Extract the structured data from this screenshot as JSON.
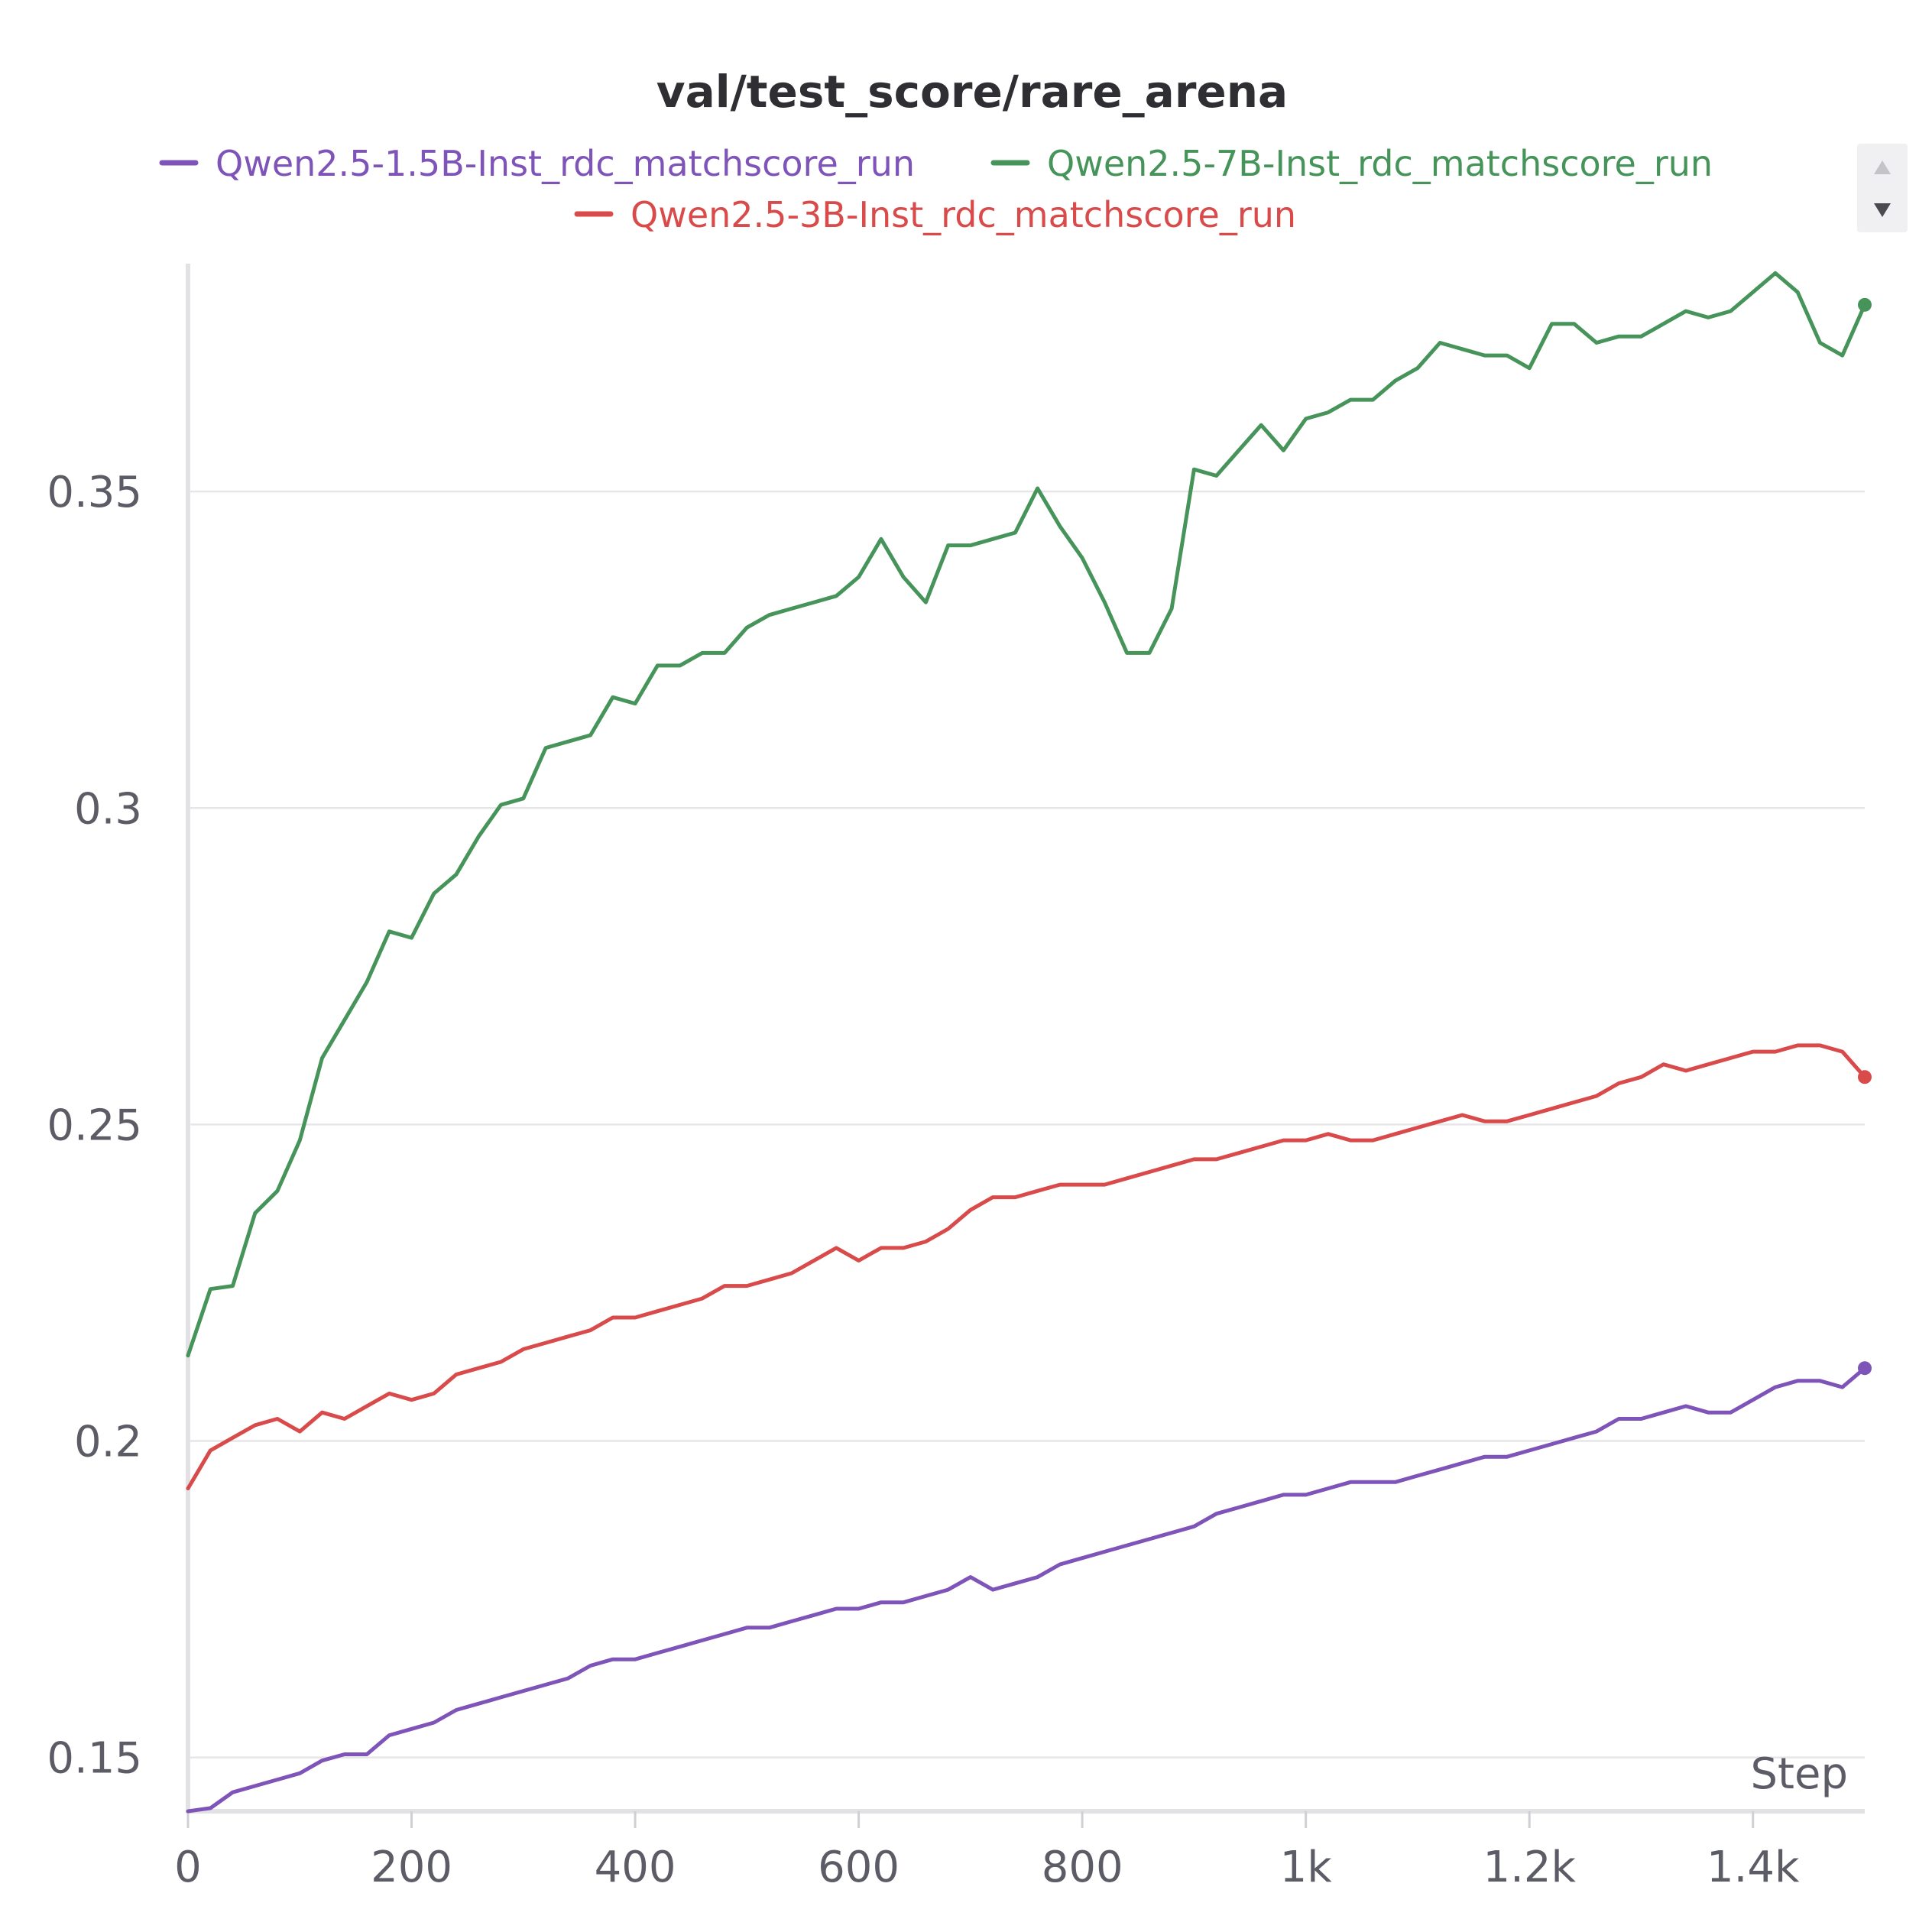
{
  "chart_data": {
    "type": "line",
    "title": "val/test_score/rare_arena",
    "xlabel": "Step",
    "ylabel": "",
    "xlim": [
      0,
      1500
    ],
    "ylim": [
      0.1415,
      0.386
    ],
    "grid": true,
    "legend_position": "top-center",
    "x_ticks": [
      {
        "value": 0,
        "label": "0"
      },
      {
        "value": 200,
        "label": "200"
      },
      {
        "value": 400,
        "label": "400"
      },
      {
        "value": 600,
        "label": "600"
      },
      {
        "value": 800,
        "label": "800"
      },
      {
        "value": 1000,
        "label": "1k"
      },
      {
        "value": 1200,
        "label": "1.2k"
      },
      {
        "value": 1400,
        "label": "1.4k"
      }
    ],
    "y_ticks": [
      {
        "value": 0.15,
        "label": "0.15"
      },
      {
        "value": 0.2,
        "label": "0.2"
      },
      {
        "value": 0.25,
        "label": "0.25"
      },
      {
        "value": 0.3,
        "label": "0.3"
      },
      {
        "value": 0.35,
        "label": "0.35"
      }
    ],
    "series": [
      {
        "name": "Qwen2.5-1.5B-Inst_rdc_matchscore_run",
        "color": "#7e54b8",
        "points": [
          [
            0,
            0.1415
          ],
          [
            20,
            0.142
          ],
          [
            40,
            0.1445
          ],
          [
            60,
            0.1455
          ],
          [
            80,
            0.1465
          ],
          [
            100,
            0.1475
          ],
          [
            120,
            0.1495
          ],
          [
            140,
            0.1505
          ],
          [
            160,
            0.1505
          ],
          [
            180,
            0.1535
          ],
          [
            200,
            0.1545
          ],
          [
            220,
            0.1555
          ],
          [
            240,
            0.1575
          ],
          [
            260,
            0.1585
          ],
          [
            280,
            0.1595
          ],
          [
            300,
            0.1605
          ],
          [
            320,
            0.1615
          ],
          [
            340,
            0.1625
          ],
          [
            360,
            0.1645
          ],
          [
            380,
            0.1655
          ],
          [
            400,
            0.1655
          ],
          [
            420,
            0.1665
          ],
          [
            440,
            0.1675
          ],
          [
            460,
            0.1685
          ],
          [
            480,
            0.1695
          ],
          [
            500,
            0.1705
          ],
          [
            520,
            0.1705
          ],
          [
            540,
            0.1715
          ],
          [
            560,
            0.1725
          ],
          [
            580,
            0.1735
          ],
          [
            600,
            0.1735
          ],
          [
            620,
            0.1745
          ],
          [
            640,
            0.1745
          ],
          [
            660,
            0.1755
          ],
          [
            680,
            0.1765
          ],
          [
            700,
            0.1785
          ],
          [
            720,
            0.1765
          ],
          [
            740,
            0.1775
          ],
          [
            760,
            0.1785
          ],
          [
            780,
            0.1805
          ],
          [
            800,
            0.1815
          ],
          [
            820,
            0.1825
          ],
          [
            840,
            0.1835
          ],
          [
            860,
            0.1845
          ],
          [
            880,
            0.1855
          ],
          [
            900,
            0.1865
          ],
          [
            920,
            0.1885
          ],
          [
            940,
            0.1895
          ],
          [
            960,
            0.1905
          ],
          [
            980,
            0.1915
          ],
          [
            1000,
            0.1915
          ],
          [
            1020,
            0.1925
          ],
          [
            1040,
            0.1935
          ],
          [
            1060,
            0.1935
          ],
          [
            1080,
            0.1935
          ],
          [
            1100,
            0.1945
          ],
          [
            1120,
            0.1955
          ],
          [
            1140,
            0.1965
          ],
          [
            1160,
            0.1975
          ],
          [
            1180,
            0.1975
          ],
          [
            1200,
            0.1985
          ],
          [
            1220,
            0.1995
          ],
          [
            1240,
            0.2005
          ],
          [
            1260,
            0.2015
          ],
          [
            1280,
            0.2035
          ],
          [
            1300,
            0.2035
          ],
          [
            1320,
            0.2045
          ],
          [
            1340,
            0.2055
          ],
          [
            1360,
            0.2045
          ],
          [
            1380,
            0.2045
          ],
          [
            1400,
            0.2065
          ],
          [
            1420,
            0.2085
          ],
          [
            1440,
            0.2095
          ],
          [
            1460,
            0.2095
          ],
          [
            1480,
            0.2085
          ],
          [
            1500,
            0.2115
          ]
        ]
      },
      {
        "name": "Qwen2.5-7B-Inst_rdc_matchscore_run",
        "color": "#46945a",
        "points": [
          [
            0,
            0.2135
          ],
          [
            20,
            0.224
          ],
          [
            40,
            0.2245
          ],
          [
            60,
            0.236
          ],
          [
            80,
            0.2395
          ],
          [
            100,
            0.2475
          ],
          [
            120,
            0.2605
          ],
          [
            140,
            0.2665
          ],
          [
            160,
            0.2725
          ],
          [
            180,
            0.2805
          ],
          [
            200,
            0.2795
          ],
          [
            220,
            0.2865
          ],
          [
            240,
            0.2895
          ],
          [
            260,
            0.2955
          ],
          [
            280,
            0.3005
          ],
          [
            300,
            0.3015
          ],
          [
            320,
            0.3095
          ],
          [
            340,
            0.3105
          ],
          [
            360,
            0.3115
          ],
          [
            380,
            0.3175
          ],
          [
            400,
            0.3165
          ],
          [
            420,
            0.3225
          ],
          [
            440,
            0.3225
          ],
          [
            460,
            0.3245
          ],
          [
            480,
            0.3245
          ],
          [
            500,
            0.3285
          ],
          [
            520,
            0.3305
          ],
          [
            540,
            0.3315
          ],
          [
            560,
            0.3325
          ],
          [
            580,
            0.3335
          ],
          [
            600,
            0.3365
          ],
          [
            620,
            0.3425
          ],
          [
            640,
            0.3365
          ],
          [
            660,
            0.3325
          ],
          [
            680,
            0.3415
          ],
          [
            700,
            0.3415
          ],
          [
            720,
            0.3425
          ],
          [
            740,
            0.3435
          ],
          [
            760,
            0.3505
          ],
          [
            780,
            0.3445
          ],
          [
            800,
            0.3395
          ],
          [
            820,
            0.3325
          ],
          [
            840,
            0.3245
          ],
          [
            860,
            0.3245
          ],
          [
            880,
            0.3315
          ],
          [
            900,
            0.3535
          ],
          [
            920,
            0.3525
          ],
          [
            940,
            0.3565
          ],
          [
            960,
            0.3605
          ],
          [
            980,
            0.3565
          ],
          [
            1000,
            0.3615
          ],
          [
            1020,
            0.3625
          ],
          [
            1040,
            0.3645
          ],
          [
            1060,
            0.3645
          ],
          [
            1080,
            0.3675
          ],
          [
            1100,
            0.3695
          ],
          [
            1120,
            0.3735
          ],
          [
            1140,
            0.3725
          ],
          [
            1160,
            0.3715
          ],
          [
            1180,
            0.3715
          ],
          [
            1200,
            0.3695
          ],
          [
            1220,
            0.3765
          ],
          [
            1240,
            0.3765
          ],
          [
            1260,
            0.3735
          ],
          [
            1280,
            0.3745
          ],
          [
            1300,
            0.3745
          ],
          [
            1320,
            0.3765
          ],
          [
            1340,
            0.3785
          ],
          [
            1360,
            0.3775
          ],
          [
            1380,
            0.3785
          ],
          [
            1400,
            0.3815
          ],
          [
            1420,
            0.3845
          ],
          [
            1440,
            0.3815
          ],
          [
            1460,
            0.3735
          ],
          [
            1480,
            0.3715
          ],
          [
            1500,
            0.3795
          ]
        ]
      },
      {
        "name": "Qwen2.5-3B-Inst_rdc_matchscore_run",
        "color": "#d94a4a",
        "points": [
          [
            0,
            0.1925
          ],
          [
            20,
            0.1985
          ],
          [
            40,
            0.2005
          ],
          [
            60,
            0.2025
          ],
          [
            80,
            0.2035
          ],
          [
            100,
            0.2015
          ],
          [
            120,
            0.2045
          ],
          [
            140,
            0.2035
          ],
          [
            160,
            0.2055
          ],
          [
            180,
            0.2075
          ],
          [
            200,
            0.2065
          ],
          [
            220,
            0.2075
          ],
          [
            240,
            0.2105
          ],
          [
            260,
            0.2115
          ],
          [
            280,
            0.2125
          ],
          [
            300,
            0.2145
          ],
          [
            320,
            0.2155
          ],
          [
            340,
            0.2165
          ],
          [
            360,
            0.2175
          ],
          [
            380,
            0.2195
          ],
          [
            400,
            0.2195
          ],
          [
            420,
            0.2205
          ],
          [
            440,
            0.2215
          ],
          [
            460,
            0.2225
          ],
          [
            480,
            0.2245
          ],
          [
            500,
            0.2245
          ],
          [
            520,
            0.2255
          ],
          [
            540,
            0.2265
          ],
          [
            560,
            0.2285
          ],
          [
            580,
            0.2305
          ],
          [
            600,
            0.2285
          ],
          [
            620,
            0.2305
          ],
          [
            640,
            0.2305
          ],
          [
            660,
            0.2315
          ],
          [
            680,
            0.2335
          ],
          [
            700,
            0.2365
          ],
          [
            720,
            0.2385
          ],
          [
            740,
            0.2385
          ],
          [
            760,
            0.2395
          ],
          [
            780,
            0.2405
          ],
          [
            800,
            0.2405
          ],
          [
            820,
            0.2405
          ],
          [
            840,
            0.2415
          ],
          [
            860,
            0.2425
          ],
          [
            880,
            0.2435
          ],
          [
            900,
            0.2445
          ],
          [
            920,
            0.2445
          ],
          [
            940,
            0.2455
          ],
          [
            960,
            0.2465
          ],
          [
            980,
            0.2475
          ],
          [
            1000,
            0.2475
          ],
          [
            1020,
            0.2485
          ],
          [
            1040,
            0.2475
          ],
          [
            1060,
            0.2475
          ],
          [
            1080,
            0.2485
          ],
          [
            1100,
            0.2495
          ],
          [
            1120,
            0.2505
          ],
          [
            1140,
            0.2515
          ],
          [
            1160,
            0.2505
          ],
          [
            1180,
            0.2505
          ],
          [
            1200,
            0.2515
          ],
          [
            1220,
            0.2525
          ],
          [
            1240,
            0.2535
          ],
          [
            1260,
            0.2545
          ],
          [
            1280,
            0.2565
          ],
          [
            1300,
            0.2575
          ],
          [
            1320,
            0.2595
          ],
          [
            1340,
            0.2585
          ],
          [
            1360,
            0.2595
          ],
          [
            1380,
            0.2605
          ],
          [
            1400,
            0.2615
          ],
          [
            1420,
            0.2615
          ],
          [
            1440,
            0.2625
          ],
          [
            1460,
            0.2625
          ],
          [
            1480,
            0.2615
          ],
          [
            1500,
            0.2575
          ]
        ]
      }
    ]
  },
  "legend_scroll": {
    "up_icon": "triangle-up-icon",
    "down_icon": "triangle-down-icon"
  }
}
